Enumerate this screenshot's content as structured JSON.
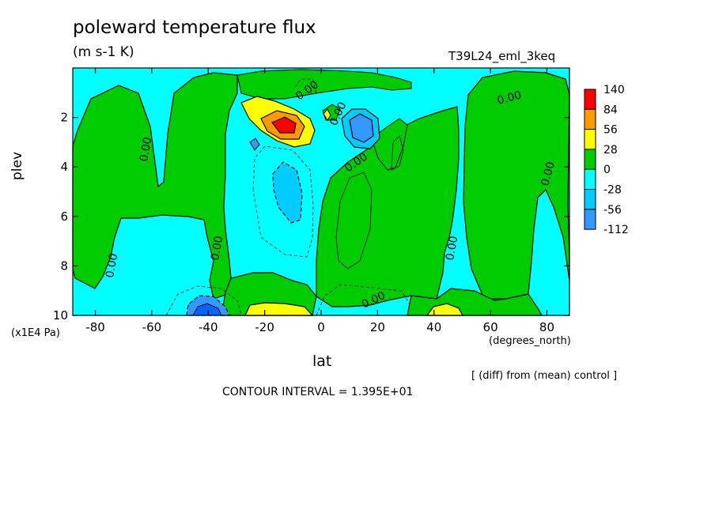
{
  "title": "poleward temperature flux",
  "units": "(m s-1 K)",
  "run_label": "T39L24_eml_3keq",
  "y_unit": "(x1E4 Pa)",
  "x_unit": "(degrees_north)",
  "note": "[ (diff) from (mean) control ]",
  "contour_interval": "CONTOUR INTERVAL = 1.395E+01",
  "chart_data": {
    "type": "heatmap",
    "title": "poleward temperature flux",
    "xlabel": "lat",
    "ylabel": "plev",
    "xlim": [
      -88,
      88
    ],
    "ylim": [
      10,
      0
    ],
    "x_ticks": [
      -80,
      -60,
      -40,
      -20,
      0,
      20,
      40,
      60,
      80
    ],
    "x_tick_labels": [
      "-80",
      "-60",
      "-40",
      "-20",
      "0",
      "20",
      "40",
      "60",
      "80"
    ],
    "y_ticks": [
      2,
      4,
      6,
      8,
      10
    ],
    "y_tick_labels": [
      "2",
      "4",
      "6",
      "8",
      "10"
    ],
    "contour_labels": [
      "0.00",
      "0.00",
      "0.00",
      "0.00",
      "0.00",
      "0.00",
      "0.00",
      "0.00",
      "0.00",
      "0.00"
    ],
    "colorbar": {
      "levels": [
        "140",
        "84",
        "56",
        "28",
        "0",
        "-28",
        "-56",
        "-112"
      ],
      "colors": [
        "#ff0000",
        "#ff9900",
        "#ffff00",
        "#00cc00",
        "#00ffff",
        "#00ccff",
        "#3399ff",
        "#0066ff"
      ],
      "bins": [
        {
          "range": [
            84,
            140
          ],
          "color": "#ff0000"
        },
        {
          "range": [
            56,
            84
          ],
          "color": "#ff9900"
        },
        {
          "range": [
            28,
            56
          ],
          "color": "#ffff00"
        },
        {
          "range": [
            0,
            28
          ],
          "color": "#00cc00"
        },
        {
          "range": [
            -28,
            0
          ],
          "color": "#00ffff"
        },
        {
          "range": [
            -56,
            -28
          ],
          "color": "#00ccff"
        },
        {
          "range": [
            -112,
            -56
          ],
          "color": "#3399ff"
        }
      ]
    },
    "features": [
      {
        "kind": "max",
        "lat": -13,
        "plev": 2.5,
        "bin": "84..140"
      },
      {
        "kind": "min",
        "lat": 14,
        "plev": 2.4,
        "bin": "-56..-112"
      },
      {
        "kind": "min",
        "lat": -41,
        "plev": 9.8,
        "bin": "-56..-112"
      },
      {
        "kind": "max",
        "lat": -15,
        "plev": 9.9,
        "bin": "28..56"
      },
      {
        "kind": "max",
        "lat": 44,
        "plev": 9.9,
        "bin": "28..56"
      },
      {
        "kind": "min",
        "lat": -13,
        "plev": 5.3,
        "bin": "-28..-56"
      }
    ]
  }
}
